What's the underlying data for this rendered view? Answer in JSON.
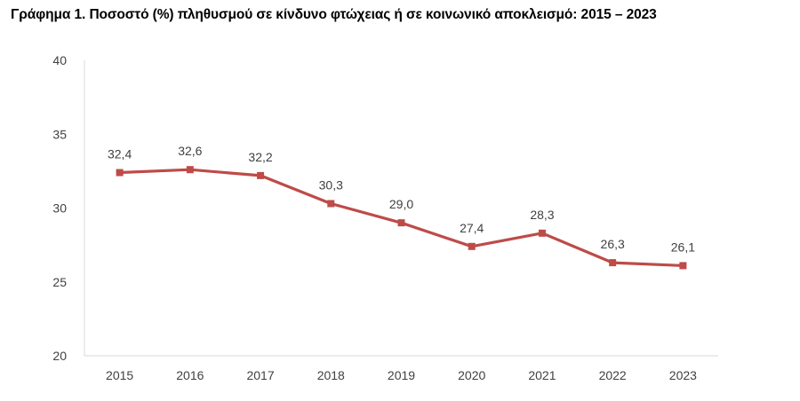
{
  "title": "Γράφημα 1. Ποσοστό (%) πληθυσμού σε κίνδυνο φτώχειας ή σε κοινωνικό αποκλεισμό: 2015 – 2023",
  "chart_data": {
    "type": "line",
    "title": "Γράφημα 1. Ποσοστό (%) πληθυσμού σε κίνδυνο φτώχειας ή σε κοινωνικό αποκλεισμό: 2015 – 2023",
    "categories": [
      "2015",
      "2016",
      "2017",
      "2018",
      "2019",
      "2020",
      "2021",
      "2022",
      "2023"
    ],
    "series": [
      {
        "values": [
          32.4,
          32.6,
          32.2,
          30.3,
          29.0,
          27.4,
          28.3,
          26.3,
          26.1
        ],
        "labels": [
          "32,4",
          "32,6",
          "32,2",
          "30,3",
          "29,0",
          "27,4",
          "28,3",
          "26,3",
          "26,1"
        ],
        "color": "#be4b48",
        "marker": "square"
      }
    ],
    "ylim": [
      20,
      40
    ],
    "yticks": [
      "20",
      "25",
      "30",
      "35",
      "40"
    ],
    "ytick_values": [
      20,
      25,
      30,
      35,
      40
    ],
    "xlabel": "",
    "ylabel": "",
    "grid": false,
    "legend": "none",
    "axis_color": "#d9d9d9"
  }
}
